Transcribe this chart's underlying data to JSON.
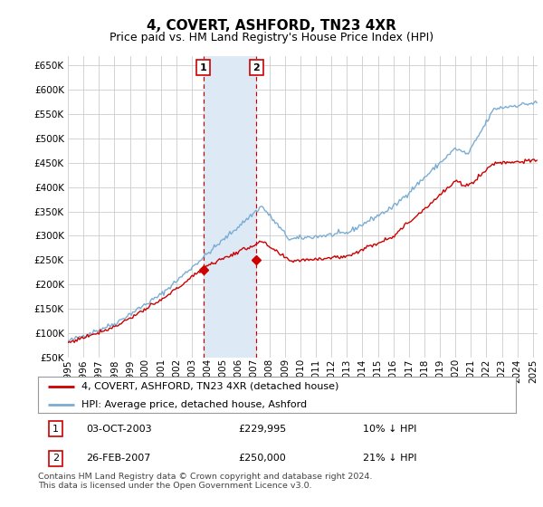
{
  "title": "4, COVERT, ASHFORD, TN23 4XR",
  "subtitle": "Price paid vs. HM Land Registry's House Price Index (HPI)",
  "ylim": [
    50000,
    670000
  ],
  "yticks": [
    50000,
    100000,
    150000,
    200000,
    250000,
    300000,
    350000,
    400000,
    450000,
    500000,
    550000,
    600000,
    650000
  ],
  "xlim_start": 1995.0,
  "xlim_end": 2025.3,
  "sale1_date": 2003.75,
  "sale1_price": 229995,
  "sale1_label": "1",
  "sale2_date": 2007.15,
  "sale2_price": 250000,
  "sale2_label": "2",
  "hpi_color": "#7aadd4",
  "price_color": "#cc0000",
  "shade_color": "#ddeaf5",
  "grid_color": "#cccccc",
  "bg_color": "#ffffff",
  "legend_label_price": "4, COVERT, ASHFORD, TN23 4XR (detached house)",
  "legend_label_hpi": "HPI: Average price, detached house, Ashford",
  "table_row1": [
    "1",
    "03-OCT-2003",
    "£229,995",
    "10% ↓ HPI"
  ],
  "table_row2": [
    "2",
    "26-FEB-2007",
    "£250,000",
    "21% ↓ HPI"
  ],
  "footer": "Contains HM Land Registry data © Crown copyright and database right 2024.\nThis data is licensed under the Open Government Licence v3.0.",
  "title_fontsize": 11,
  "subtitle_fontsize": 9,
  "tick_fontsize": 7.5
}
